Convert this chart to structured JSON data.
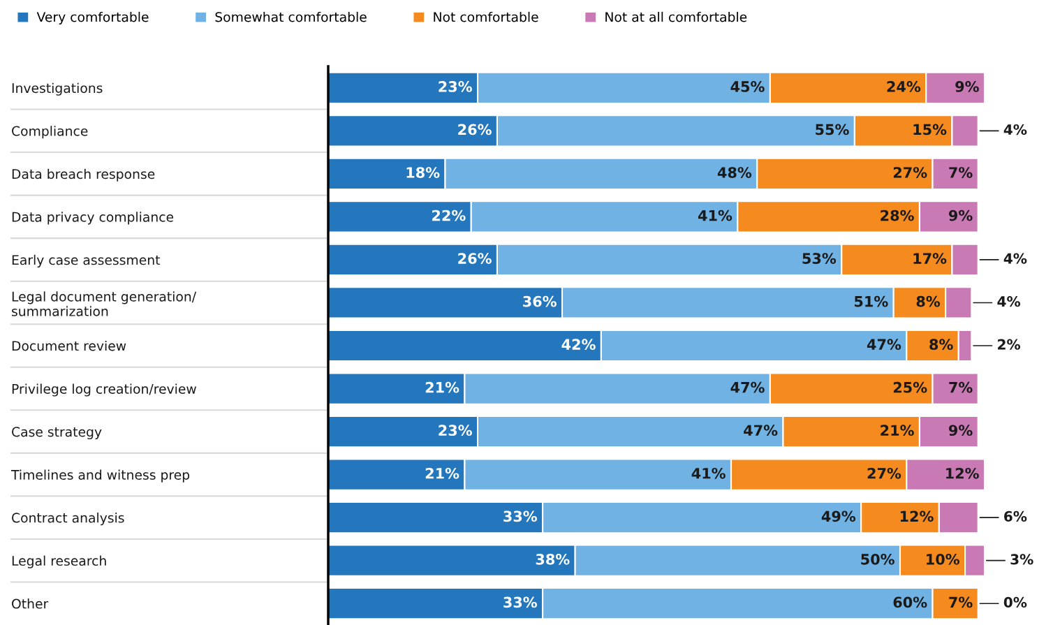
{
  "chart_data": {
    "type": "bar",
    "orientation": "horizontal",
    "stacked": true,
    "legend": "top left",
    "categories": [
      "Investigations",
      "Compliance",
      "Data breach response",
      "Data privacy compliance",
      "Early case assessment",
      "Legal document generation/\nsummarization",
      "Document review",
      "Privilege log creation/review",
      "Case strategy",
      "Timelines and witness prep",
      "Contract analysis",
      "Legal research",
      "Other"
    ],
    "series": [
      {
        "name": "Very comfortable",
        "color": "#2477bd",
        "values": [
          23,
          26,
          18,
          22,
          26,
          36,
          42,
          21,
          23,
          21,
          33,
          38,
          33
        ],
        "value_labels": [
          "23%",
          "26%",
          "18%",
          "22%",
          "26%",
          "36%",
          "42%",
          "21%",
          "23%",
          "21%",
          "33%",
          "38%",
          "33%"
        ]
      },
      {
        "name": "Somewhat comfortable",
        "color": "#6fb2e3",
        "values": [
          45,
          55,
          48,
          41,
          53,
          51,
          47,
          47,
          47,
          41,
          49,
          50,
          60
        ],
        "value_labels": [
          "45%",
          "55%",
          "48%",
          "41%",
          "53%",
          "51%",
          "47%",
          "47%",
          "47%",
          "41%",
          "49%",
          "50%",
          "60%"
        ]
      },
      {
        "name": "Not comfortable",
        "color": "#f58b1f",
        "values": [
          24,
          15,
          27,
          28,
          17,
          8,
          8,
          25,
          21,
          27,
          12,
          10,
          7
        ],
        "value_labels": [
          "24%",
          "15%",
          "27%",
          "28%",
          "17%",
          "8%",
          "8%",
          "25%",
          "21%",
          "27%",
          "12%",
          "10%",
          "7%"
        ]
      },
      {
        "name": "Not at all comfortable",
        "color": "#c97ab4",
        "values": [
          9,
          4,
          7,
          9,
          4,
          4,
          2,
          7,
          9,
          12,
          6,
          3,
          0
        ],
        "value_labels": [
          "9%",
          "4%",
          "7%",
          "9%",
          "4%",
          "4%",
          "2%",
          "7%",
          "9%",
          "12%",
          "6%",
          "3%",
          "0%"
        ]
      }
    ]
  }
}
